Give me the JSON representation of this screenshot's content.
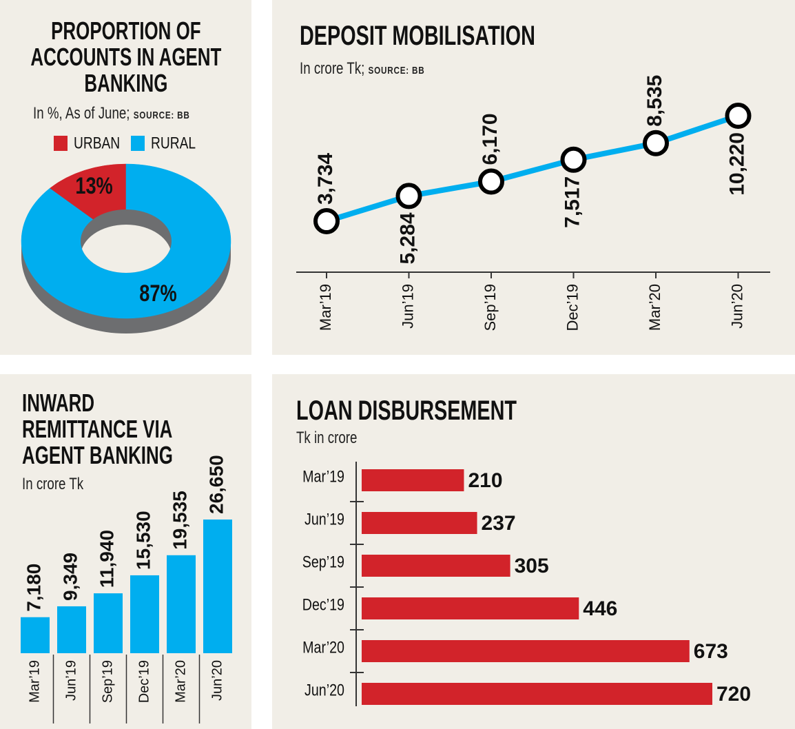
{
  "chart_data": [
    {
      "type": "pie",
      "title": "PROPORTION OF ACCOUNTS IN AGENT BANKING",
      "subtitle": "In %, As of June;",
      "source": "SOURCE: BB",
      "donut": true,
      "categories": [
        "URBAN",
        "RURAL"
      ],
      "values": [
        13,
        87
      ],
      "value_labels": [
        "13%",
        "87%"
      ],
      "colors": [
        "#d2232a",
        "#00aeef"
      ]
    },
    {
      "type": "line",
      "title": "DEPOSIT MOBILISATION",
      "subtitle": "In crore Tk;",
      "source": "SOURCE: BB",
      "categories": [
        "Mar’19",
        "Jun’19",
        "Sep’19",
        "Dec’19",
        "Mar’20",
        "Jun’20"
      ],
      "values": [
        3734,
        5284,
        6170,
        7517,
        8535,
        10220
      ],
      "value_labels": [
        "3,734",
        "5,284",
        "6,170",
        "7,517",
        "8,535",
        "10,220"
      ],
      "color": "#00aeef"
    },
    {
      "type": "bar",
      "title": "INWARD REMITTANCE VIA AGENT BANKING",
      "subtitle": "In crore Tk",
      "categories": [
        "Mar’19",
        "Jun’19",
        "Sep’19",
        "Dec’19",
        "Mar’20",
        "Jun’20"
      ],
      "values": [
        7180,
        9349,
        11940,
        15530,
        19535,
        26650
      ],
      "value_labels": [
        "7,180",
        "9,349",
        "11,940",
        "15,530",
        "19,535",
        "26,650"
      ],
      "color": "#00aeef"
    },
    {
      "type": "hbar",
      "title": "LOAN DISBURSEMENT",
      "subtitle": "Tk in crore",
      "categories": [
        "Mar’19",
        "Jun’19",
        "Sep’19",
        "Dec’19",
        "Mar’20",
        "Jun’20"
      ],
      "values": [
        210,
        237,
        305,
        446,
        673,
        720
      ],
      "color": "#d2232a"
    }
  ]
}
